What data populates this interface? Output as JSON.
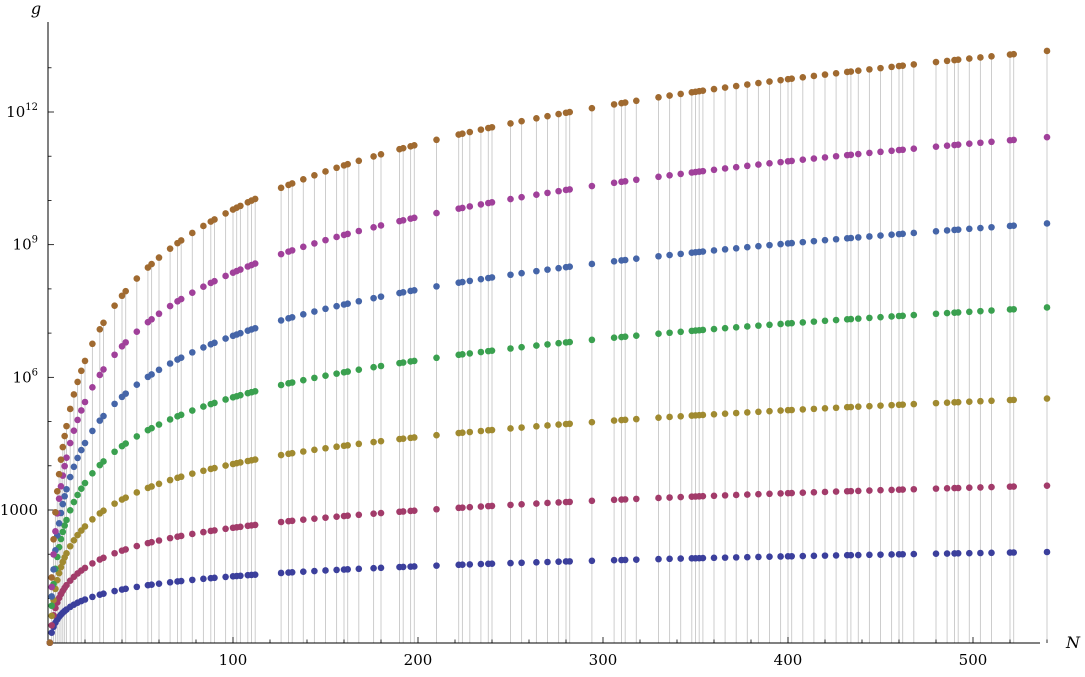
{
  "chart_data": {
    "type": "scatter",
    "title": "",
    "xlabel": "N",
    "ylabel": "g",
    "xlim": [
      0,
      540
    ],
    "ylim_log10": [
      0,
      14
    ],
    "yscale": "log",
    "x_ticks": [
      {
        "value": 100,
        "label": "100"
      },
      {
        "value": 200,
        "label": "200"
      },
      {
        "value": 300,
        "label": "300"
      },
      {
        "value": 400,
        "label": "400"
      },
      {
        "value": 500,
        "label": "500"
      }
    ],
    "y_ticks": [
      {
        "log10": 3,
        "label": "1000",
        "base": "",
        "exp": ""
      },
      {
        "log10": 6,
        "label": "",
        "base": "10",
        "exp": "6"
      },
      {
        "log10": 9,
        "label": "",
        "base": "10",
        "exp": "9"
      },
      {
        "log10": 12,
        "label": "",
        "base": "10",
        "exp": "12"
      }
    ],
    "grid": false,
    "stems": true,
    "N_values": [
      1,
      2,
      3,
      4,
      5,
      6,
      7,
      8,
      9,
      10,
      12,
      14,
      16,
      18,
      20,
      24,
      28,
      30,
      36,
      40,
      42,
      48,
      54,
      56,
      60,
      66,
      70,
      72,
      78,
      84,
      88,
      90,
      96,
      100,
      102,
      104,
      108,
      110,
      112,
      126,
      130,
      132,
      138,
      144,
      150,
      156,
      160,
      162,
      168,
      176,
      180,
      190,
      192,
      196,
      198,
      210,
      222,
      224,
      228,
      234,
      238,
      240,
      250,
      256,
      264,
      270,
      276,
      280,
      282,
      294,
      306,
      310,
      312,
      318,
      330,
      336,
      342,
      348,
      350,
      352,
      354,
      360,
      366,
      372,
      378,
      384,
      390,
      396,
      400,
      402,
      408,
      414,
      420,
      426,
      432,
      434,
      438,
      444,
      450,
      456,
      460,
      462,
      468,
      480,
      486,
      490,
      492,
      498,
      504,
      510,
      520,
      522,
      540
    ],
    "series": [
      {
        "color": "#3b3f9c",
        "exponent_at_540": 2.05,
        "offset": 0
      },
      {
        "color": "#a23b6a",
        "exponent_at_540": 3.55,
        "offset": 0
      },
      {
        "color": "#a08a30",
        "exponent_at_540": 5.52,
        "offset": 0
      },
      {
        "color": "#3aa04f",
        "exponent_at_540": 7.58,
        "offset": 0
      },
      {
        "color": "#4565a8",
        "exponent_at_540": 9.48,
        "offset": 0
      },
      {
        "color": "#a0409a",
        "exponent_at_540": 11.43,
        "offset": 0
      },
      {
        "color": "#a06a30",
        "exponent_at_540": 13.38,
        "offset": 0
      }
    ]
  }
}
